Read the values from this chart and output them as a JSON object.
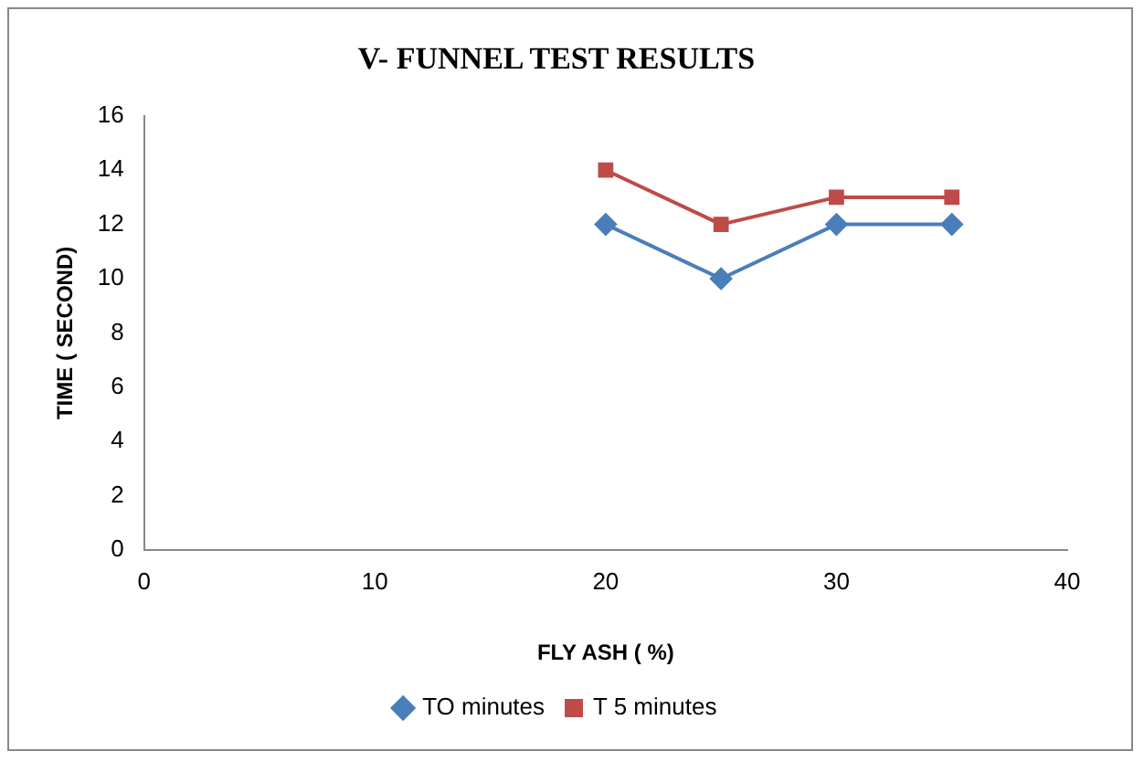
{
  "chart_data": {
    "type": "line",
    "title": "V- FUNNEL TEST RESULTS",
    "xlabel": "FLY ASH ( %)",
    "ylabel": "TIME ( SECOND)",
    "x": [
      20,
      25,
      30,
      35
    ],
    "series": [
      {
        "name": "TO minutes",
        "color": "#4a7ebb",
        "values": [
          12,
          10,
          12,
          12
        ],
        "marker": "diamond"
      },
      {
        "name": "T 5 minutes",
        "color": "#be4b48",
        "values": [
          14,
          12,
          13,
          13
        ],
        "marker": "square"
      }
    ],
    "xlim": [
      0,
      40
    ],
    "xticks": [
      0,
      10,
      20,
      30,
      40
    ],
    "ylim": [
      0,
      16
    ],
    "yticks": [
      0,
      2,
      4,
      6,
      8,
      10,
      12,
      14,
      16
    ],
    "grid": false,
    "legend": "bottom"
  }
}
